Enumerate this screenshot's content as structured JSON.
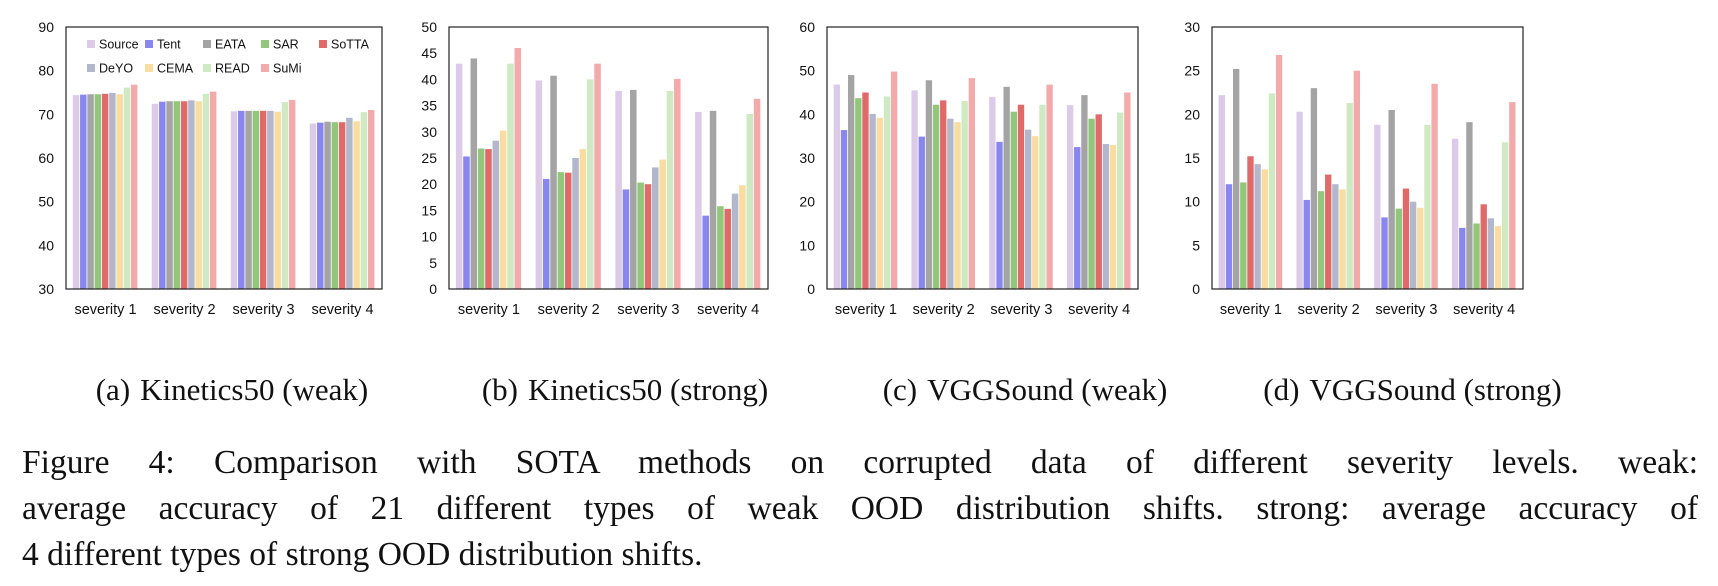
{
  "figure": {
    "caption_lines": [
      "Figure 4:  Comparison with SOTA methods on corrupted data of different severity levels.  weak:",
      "average accuracy of 21 different types of weak OOD distribution shifts. strong: average accuracy of",
      "4 different types of strong OOD distribution shifts."
    ],
    "colors": {
      "Source": "#dccbe8",
      "Tent": "#8a86f0",
      "EATA": "#a4a4a4",
      "SAR": "#92c67a",
      "SoTTA": "#e06a6a",
      "DeYO": "#b2b7cc",
      "CEMA": "#f8dca0",
      "READ": "#cfeac3",
      "SuMi": "#f3aaaa"
    }
  },
  "chart_data": [
    {
      "type": "bar",
      "panel_label": "(a)",
      "title": "Kinetics50 (weak)",
      "categories": [
        "severity 1",
        "severity 2",
        "severity 3",
        "severity 4"
      ],
      "ylim": [
        30,
        90
      ],
      "yticks": [
        30,
        40,
        50,
        60,
        70,
        80,
        90
      ],
      "legend": {
        "placement": "top-left",
        "entries": [
          "Source",
          "Tent",
          "EATA",
          "SAR",
          "SoTTA",
          "DeYO",
          "CEMA",
          "READ",
          "SuMi"
        ]
      },
      "series": [
        {
          "name": "Source",
          "values": [
            74.4,
            72.4,
            70.7,
            67.9
          ]
        },
        {
          "name": "Tent",
          "values": [
            74.5,
            72.9,
            70.8,
            68.1
          ]
        },
        {
          "name": "EATA",
          "values": [
            74.6,
            73.0,
            70.8,
            68.3
          ]
        },
        {
          "name": "SAR",
          "values": [
            74.6,
            73.0,
            70.8,
            68.2
          ]
        },
        {
          "name": "SoTTA",
          "values": [
            74.7,
            73.0,
            70.8,
            68.2
          ]
        },
        {
          "name": "DeYO",
          "values": [
            74.9,
            73.2,
            70.8,
            69.2
          ]
        },
        {
          "name": "CEMA",
          "values": [
            74.6,
            73.0,
            70.6,
            68.4
          ]
        },
        {
          "name": "READ",
          "values": [
            76.1,
            74.7,
            72.8,
            70.5
          ]
        },
        {
          "name": "SuMi",
          "values": [
            76.8,
            75.2,
            73.3,
            71.0
          ]
        }
      ]
    },
    {
      "type": "bar",
      "panel_label": "(b)",
      "title": "Kinetics50 (strong)",
      "categories": [
        "severity 1",
        "severity 2",
        "severity 3",
        "severity 4"
      ],
      "ylim": [
        0,
        50
      ],
      "yticks": [
        0,
        5,
        10,
        15,
        20,
        25,
        30,
        35,
        40,
        45,
        50
      ],
      "series": [
        {
          "name": "Source",
          "values": [
            43.0,
            39.8,
            37.8,
            33.8
          ]
        },
        {
          "name": "Tent",
          "values": [
            25.3,
            21.0,
            19.0,
            14.0
          ]
        },
        {
          "name": "EATA",
          "values": [
            44.0,
            40.7,
            38.0,
            34.0
          ]
        },
        {
          "name": "SAR",
          "values": [
            26.8,
            22.3,
            20.3,
            15.8
          ]
        },
        {
          "name": "SoTTA",
          "values": [
            26.7,
            22.2,
            20.0,
            15.3
          ]
        },
        {
          "name": "DeYO",
          "values": [
            28.3,
            25.0,
            23.2,
            18.2
          ]
        },
        {
          "name": "CEMA",
          "values": [
            30.2,
            26.7,
            24.7,
            19.8
          ]
        },
        {
          "name": "READ",
          "values": [
            43.0,
            40.0,
            37.8,
            33.4
          ]
        },
        {
          "name": "SuMi",
          "values": [
            46.0,
            43.0,
            40.1,
            36.3
          ]
        }
      ]
    },
    {
      "type": "bar",
      "panel_label": "(c)",
      "title": "VGGSound (weak)",
      "categories": [
        "severity 1",
        "severity 2",
        "severity 3",
        "severity 4"
      ],
      "ylim": [
        0,
        60
      ],
      "yticks": [
        0,
        10,
        20,
        30,
        40,
        50,
        60
      ],
      "series": [
        {
          "name": "Source",
          "values": [
            46.8,
            45.5,
            44.0,
            42.1
          ]
        },
        {
          "name": "Tent",
          "values": [
            36.4,
            34.9,
            33.7,
            32.5
          ]
        },
        {
          "name": "EATA",
          "values": [
            49.0,
            47.8,
            46.3,
            44.4
          ]
        },
        {
          "name": "SAR",
          "values": [
            43.7,
            42.2,
            40.6,
            39.0
          ]
        },
        {
          "name": "SoTTA",
          "values": [
            45.0,
            43.2,
            42.2,
            40.0
          ]
        },
        {
          "name": "DeYO",
          "values": [
            40.1,
            39.0,
            36.5,
            33.2
          ]
        },
        {
          "name": "CEMA",
          "values": [
            39.2,
            38.2,
            35.0,
            33.0
          ]
        },
        {
          "name": "READ",
          "values": [
            44.1,
            43.1,
            42.2,
            40.4
          ]
        },
        {
          "name": "SuMi",
          "values": [
            49.8,
            48.3,
            46.8,
            45.0
          ]
        }
      ]
    },
    {
      "type": "bar",
      "panel_label": "(d)",
      "title": "VGGSound (strong)",
      "categories": [
        "severity 1",
        "severity 2",
        "severity 3",
        "severity 4"
      ],
      "ylim": [
        0,
        30
      ],
      "yticks": [
        0,
        5,
        10,
        15,
        20,
        25,
        30
      ],
      "series": [
        {
          "name": "Source",
          "values": [
            22.2,
            20.3,
            18.8,
            17.2
          ]
        },
        {
          "name": "Tent",
          "values": [
            12.0,
            10.2,
            8.2,
            7.0
          ]
        },
        {
          "name": "EATA",
          "values": [
            25.2,
            23.0,
            20.5,
            19.1
          ]
        },
        {
          "name": "SAR",
          "values": [
            12.2,
            11.2,
            9.2,
            7.5
          ]
        },
        {
          "name": "SoTTA",
          "values": [
            15.2,
            13.1,
            11.5,
            9.7
          ]
        },
        {
          "name": "DeYO",
          "values": [
            14.3,
            12.0,
            10.0,
            8.1
          ]
        },
        {
          "name": "CEMA",
          "values": [
            13.7,
            11.4,
            9.3,
            7.2
          ]
        },
        {
          "name": "READ",
          "values": [
            22.4,
            21.3,
            18.8,
            16.8
          ]
        },
        {
          "name": "SuMi",
          "values": [
            26.8,
            25.0,
            23.5,
            21.4
          ]
        }
      ]
    }
  ]
}
